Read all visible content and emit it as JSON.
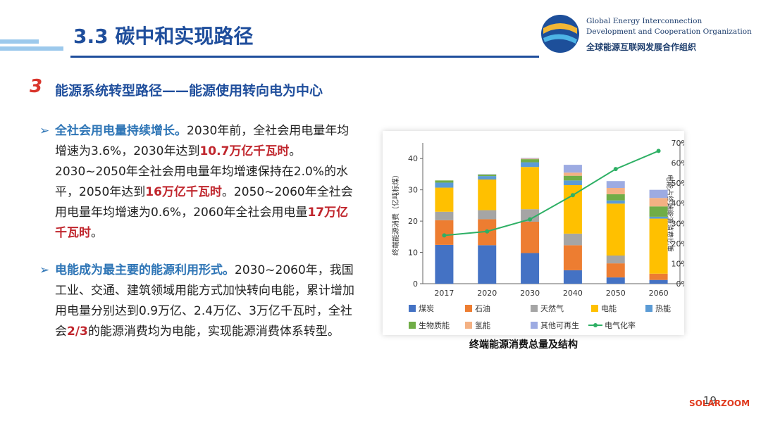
{
  "header": {
    "title": "3.3 碳中和实现路径",
    "org_en_1": "Global Energy Interconnection",
    "org_en_2": "Development and Cooperation Organization",
    "org_cn": "全球能源互联网发展合作组织"
  },
  "section": {
    "number": "3",
    "title": "能源系统转型路径——能源使用转向电为中心"
  },
  "bullets": [
    {
      "lead": "全社会用电量持续增长。",
      "segments": [
        "2030年前，全社会用电量年均增速为3.6%，2030年达到",
        "10.7万亿千瓦时",
        "。2030~2050年全社会用电量年均增速保持在2.0%的水平，2050年达到",
        "16万亿千瓦时",
        "。2050~2060年全社会用电量年均增速为0.6%，2060年全社会用电量",
        "17万亿千瓦时",
        "。"
      ]
    },
    {
      "lead": "电能成为最主要的能源利用形式。",
      "segments": [
        "2030~2060年，我国工业、交通、建筑领域用能方式加快转向电能，累计增加用电量分别达到0.9万亿、2.4万亿、3万亿千瓦时，全社会",
        "2/3",
        "的能源消费均为电能，实现能源消费体系转型。"
      ]
    }
  ],
  "chart_data": {
    "type": "bar",
    "stacked": true,
    "title": "终端能源消费总量及结构",
    "ylabel": "终端能源消费（亿吨标煤）",
    "y2label": "电能占终端能源消费比重",
    "categories": [
      "2017",
      "2020",
      "2030",
      "2040",
      "2050",
      "2060"
    ],
    "ylim": [
      0,
      45
    ],
    "yticks": [
      0,
      10,
      20,
      30,
      40
    ],
    "y2lim": [
      0,
      70
    ],
    "y2ticks": [
      {
        "value": 0,
        "label": "0%"
      },
      {
        "value": 10,
        "label": "10%"
      },
      {
        "value": 20,
        "label": "20%"
      },
      {
        "value": 30,
        "label": "30%"
      },
      {
        "value": 40,
        "label": "40%"
      },
      {
        "value": 50,
        "label": "50%"
      },
      {
        "value": 60,
        "label": "60%"
      },
      {
        "value": 70,
        "label": "70%"
      }
    ],
    "series": [
      {
        "name": "煤炭",
        "color": "#4472c4",
        "values": [
          12.4,
          12.3,
          9.8,
          4.3,
          2,
          1.2
        ]
      },
      {
        "name": "石油",
        "color": "#ed7d31",
        "values": [
          7.9,
          8.3,
          10,
          8,
          4.5,
          2
        ]
      },
      {
        "name": "天然气",
        "color": "#a5a5a5",
        "values": [
          2.7,
          2.9,
          4,
          3.7,
          2.5,
          0
        ]
      },
      {
        "name": "电能",
        "color": "#ffc000",
        "values": [
          7.7,
          9.8,
          13.5,
          15.5,
          16.6,
          17.6
        ]
      },
      {
        "name": "热能",
        "color": "#5b9bd5",
        "values": [
          1.6,
          1.1,
          1.5,
          1.5,
          1,
          0.6
        ]
      },
      {
        "name": "生物质能",
        "color": "#70ad47",
        "values": [
          0.7,
          0.5,
          1,
          1.5,
          2,
          3.3
        ]
      },
      {
        "name": "氢能",
        "color": "#f4b183",
        "values": [
          0,
          0,
          0.2,
          1,
          2,
          2.7
        ]
      },
      {
        "name": "其他可再生",
        "color": "#9dabe2",
        "values": [
          0,
          0.1,
          0.2,
          2.5,
          2.2,
          2.6
        ]
      },
      {
        "name": "电气化率",
        "color": "#2eb065",
        "type": "line",
        "axis": "y2",
        "values": [
          24,
          26,
          32,
          44,
          57,
          66
        ]
      }
    ]
  },
  "footer": {
    "page": "19",
    "watermark": "SOLARZOOM"
  }
}
